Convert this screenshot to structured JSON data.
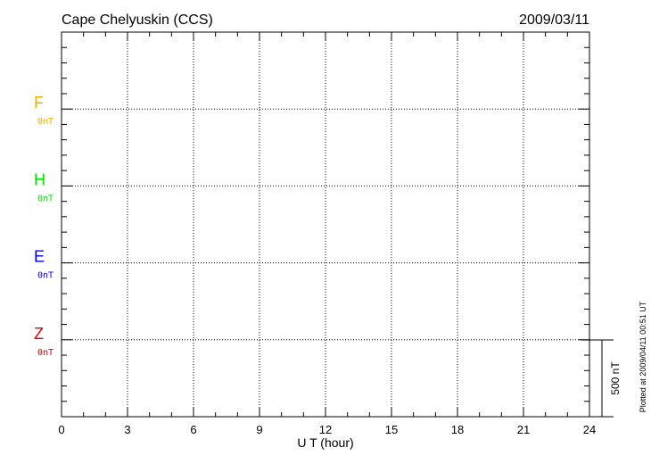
{
  "chart_data": {
    "type": "line",
    "title": "Cape Chelyuskin (CCS)",
    "date": "2009/03/11",
    "xlabel": "U T (hour)",
    "xlim": [
      0,
      24
    ],
    "xticks": [
      "0",
      "3",
      "6",
      "9",
      "12",
      "15",
      "18",
      "21",
      "24"
    ],
    "grid": true,
    "series": [
      {
        "name": "F",
        "baseline_label": "0nT",
        "color": "#f0b000",
        "values": []
      },
      {
        "name": "H",
        "baseline_label": "0nT",
        "color": "#00e000",
        "values": []
      },
      {
        "name": "E",
        "baseline_label": "0nT",
        "color": "#0000ff",
        "values": []
      },
      {
        "name": "Z",
        "baseline_label": "0nT",
        "color": "#e00000",
        "values": []
      }
    ],
    "scale_label": "500 nT",
    "footer": "Plotted at 2009/04/11 00:51 UT"
  }
}
